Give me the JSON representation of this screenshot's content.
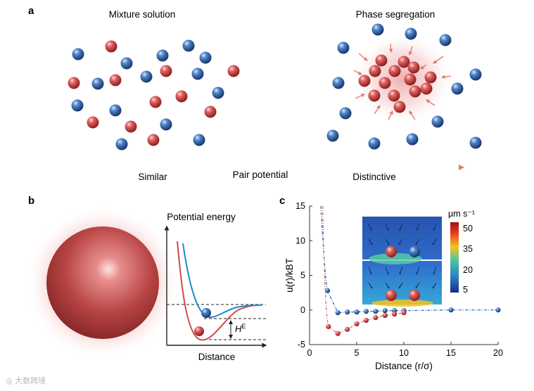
{
  "panels": {
    "a": {
      "letter": "a",
      "left_title": "Mixture solution",
      "right_title": "Phase segregation",
      "arrow_labels": [
        "Similar",
        "Pair potential",
        "Distinctive"
      ]
    },
    "b": {
      "letter": "b",
      "ylabel": "Potential energy",
      "xlabel": "Distance",
      "he_main": "H",
      "he_sup": "E"
    },
    "c": {
      "letter": "c",
      "inset_unit": "μm s⁻¹",
      "inset_ticks": [
        "50",
        "35",
        "20",
        "5"
      ]
    }
  },
  "chart_data": {
    "type": "scatter",
    "xlabel": "Distance (r/σ)",
    "ylabel": "u(r)/kBT",
    "xlim": [
      0,
      20
    ],
    "ylim": [
      -5,
      15
    ],
    "xticks": [
      0,
      5,
      10,
      15,
      20
    ],
    "yticks": [
      -5,
      0,
      5,
      10,
      15
    ],
    "series": [
      {
        "color": "#1f77b4",
        "x": [
          1.9,
          3.0,
          4.0,
          5.0,
          6.0,
          7.0,
          8.0,
          9.0,
          10.0,
          15.0,
          20.0
        ],
        "y": [
          2.8,
          -0.4,
          -0.3,
          -0.3,
          -0.2,
          -0.2,
          -0.1,
          -0.1,
          -0.1,
          0.0,
          0.0
        ]
      },
      {
        "color": "#e07070",
        "x": [
          2.0,
          3.0,
          4.0,
          5.0,
          6.0,
          7.0,
          8.0,
          9.0,
          10.0
        ],
        "y": [
          -2.4,
          -3.4,
          -2.8,
          -2.0,
          -1.5,
          -1.1,
          -0.8,
          -0.6,
          -0.4
        ]
      }
    ]
  },
  "colors": {
    "red_particle": "#d94b4b",
    "blue_particle": "#3b6fb5",
    "arrow": "#e08070",
    "accent_blue": "#1f8ac9"
  }
}
